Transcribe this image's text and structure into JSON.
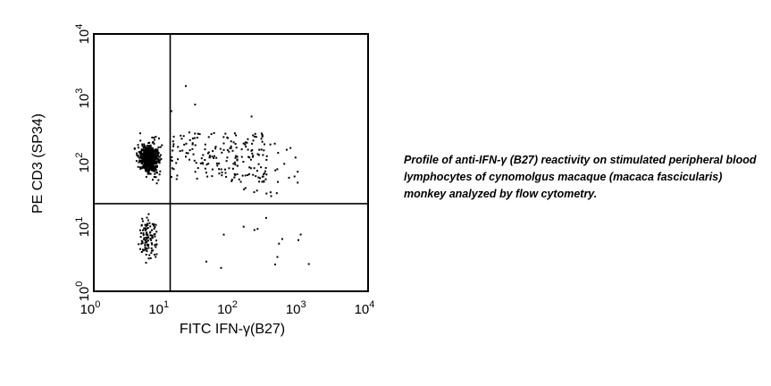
{
  "chart_data": {
    "type": "scatter",
    "title": "",
    "xlabel": "FITC IFN-γ(B27)",
    "ylabel": "PE CD3 (SP34)",
    "xscale": "log",
    "yscale": "log",
    "xlim": [
      1,
      10000
    ],
    "ylim": [
      1,
      10000
    ],
    "xticks": [
      {
        "base": "10",
        "exp": "0",
        "value": 1
      },
      {
        "base": "10",
        "exp": "1",
        "value": 10
      },
      {
        "base": "10",
        "exp": "2",
        "value": 100
      },
      {
        "base": "10",
        "exp": "3",
        "value": 1000
      },
      {
        "base": "10",
        "exp": "4",
        "value": 10000
      }
    ],
    "yticks": [
      {
        "base": "10",
        "exp": "0",
        "value": 1
      },
      {
        "base": "10",
        "exp": "1",
        "value": 10
      },
      {
        "base": "10",
        "exp": "2",
        "value": 100
      },
      {
        "base": "10",
        "exp": "3",
        "value": 1000
      },
      {
        "base": "10",
        "exp": "4",
        "value": 10000
      }
    ],
    "grid": false,
    "quadrant_gates": {
      "x": 13,
      "y": 23
    },
    "populations": [
      {
        "description_region": "dense core",
        "x_range": [
          4.5,
          9
        ],
        "y_range": [
          70,
          190
        ],
        "count": 260,
        "size": 3
      },
      {
        "description_region": "CD3+ IFN-γ- spread",
        "x_range": [
          3.5,
          12
        ],
        "y_range": [
          40,
          330
        ],
        "count": 160,
        "size": 2
      },
      {
        "description_region": "CD3+ IFN-γ+",
        "x_range": [
          13,
          330
        ],
        "y_range": [
          50,
          300
        ],
        "count": 170,
        "size": 2
      },
      {
        "description_region": "CD3+ IFN-γ+ tail",
        "x_range": [
          100,
          1000
        ],
        "y_range": [
          30,
          200
        ],
        "count": 45,
        "size": 2
      },
      {
        "description_region": "CD3- IFN-γ-",
        "x_range": [
          4,
          9.5
        ],
        "y_range": [
          2.5,
          18
        ],
        "count": 110,
        "size": 2
      },
      {
        "description_region": "CD3- IFN-γ+",
        "x_range": [
          40,
          1500
        ],
        "y_range": [
          1.2,
          20
        ],
        "count": 14,
        "size": 2
      }
    ],
    "outliers": [
      {
        "x": 22,
        "y": 1550
      },
      {
        "x": 13.5,
        "y": 630
      },
      {
        "x": 200,
        "y": 520
      },
      {
        "x": 30,
        "y": 800
      }
    ]
  },
  "caption": "Profile of anti-IFN-γ (B27) reactivity on stimulated peripheral blood lymphocytes of cynomolgus macaque (macaca fascicularis) monkey analyzed by flow cytometry.",
  "colors": {
    "points": "#000000",
    "axes": "#000000",
    "background": "#ffffff"
  }
}
